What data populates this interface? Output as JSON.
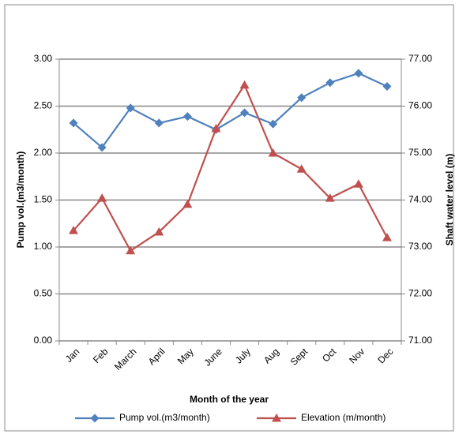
{
  "chart_data": {
    "type": "line",
    "x_label": "Month of the year",
    "y_label": "Pump vol.(m3/month)",
    "y2_label": "Shaft water level (m)",
    "categories": [
      "Jan",
      "Feb",
      "March",
      "April",
      "May",
      "June",
      "July",
      "Aug",
      "Sept",
      "Oct",
      "Nov",
      "Dec"
    ],
    "series": [
      {
        "name": "Pump vol.(m3/month)",
        "color": "#4f81bd",
        "marker": "diamond",
        "values": [
          2.32,
          2.06,
          2.48,
          2.32,
          2.39,
          2.25,
          2.43,
          2.31,
          2.59,
          2.75,
          2.85,
          2.71
        ]
      },
      {
        "name": "Elevation (m/month)",
        "color": "#c0504d",
        "marker": "triangle",
        "axis": "y2",
        "values": [
          73.35,
          74.04,
          72.92,
          73.32,
          73.91,
          75.52,
          76.45,
          75.0,
          74.66,
          74.04,
          74.34,
          73.2
        ]
      }
    ],
    "ylim": [
      0,
      3
    ],
    "yticks": [
      {
        "value": 0,
        "label": "0.00"
      },
      {
        "value": 0.5,
        "label": "0.50"
      },
      {
        "value": 1,
        "label": "1.00"
      },
      {
        "value": 1.5,
        "label": "1.50"
      },
      {
        "value": 2,
        "label": "2.00"
      },
      {
        "value": 2.5,
        "label": "2.50"
      },
      {
        "value": 3,
        "label": "3.00"
      }
    ],
    "y2lim": [
      71,
      77
    ],
    "y2ticks": [
      {
        "value": 71,
        "label": "71.00"
      },
      {
        "value": 72,
        "label": "72.00"
      },
      {
        "value": 73,
        "label": "73.00"
      },
      {
        "value": 74,
        "label": "74.00"
      },
      {
        "value": 75,
        "label": "75.00"
      },
      {
        "value": 76,
        "label": "76.00"
      },
      {
        "value": 77,
        "label": "77.00"
      }
    ],
    "grid": true,
    "legend": "bottom"
  }
}
